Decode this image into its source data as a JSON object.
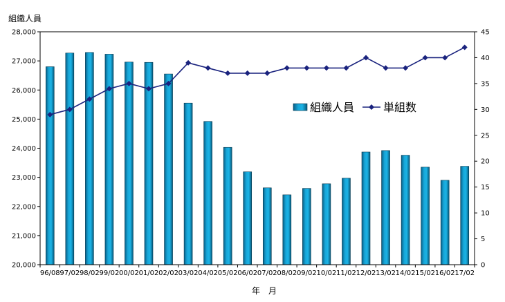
{
  "chart_data": {
    "type": "bar",
    "title": "",
    "xlabel": "年　月",
    "ylabel": "組織人員",
    "ylabel_right": "",
    "categories": [
      "96/08",
      "97/02",
      "98/02",
      "99/02",
      "00/02",
      "01/02",
      "02/02",
      "03/02",
      "04/02",
      "05/02",
      "06/02",
      "07/02",
      "08/02",
      "09/02",
      "10/02",
      "11/02",
      "12/02",
      "13/02",
      "14/02",
      "15/02",
      "16/02",
      "17/02"
    ],
    "series": [
      {
        "name": "組織人員",
        "type": "bar",
        "axis": "left",
        "color": "#0e8fc0",
        "values": [
          26800,
          27270,
          27290,
          27230,
          26960,
          26950,
          26550,
          25550,
          24920,
          24030,
          23190,
          22640,
          22400,
          22620,
          22780,
          22970,
          23870,
          23920,
          23760,
          23350,
          22900,
          23380
        ]
      },
      {
        "name": "単組数",
        "type": "line",
        "axis": "right",
        "color": "#1a237e",
        "values": [
          29,
          30,
          32,
          34,
          35,
          34,
          35,
          39,
          38,
          37,
          37,
          37,
          38,
          38,
          38,
          38,
          40,
          38,
          38,
          40,
          40,
          42
        ]
      }
    ],
    "ylim": [
      20000,
      28000
    ],
    "ylim_right": [
      0,
      45
    ],
    "yticks": [
      20000,
      21000,
      22000,
      23000,
      24000,
      25000,
      26000,
      27000,
      28000
    ],
    "yticks_right": [
      0,
      5,
      10,
      15,
      20,
      25,
      30,
      35,
      40,
      45
    ],
    "grid": false,
    "legend_position": "upper-right-inside"
  }
}
